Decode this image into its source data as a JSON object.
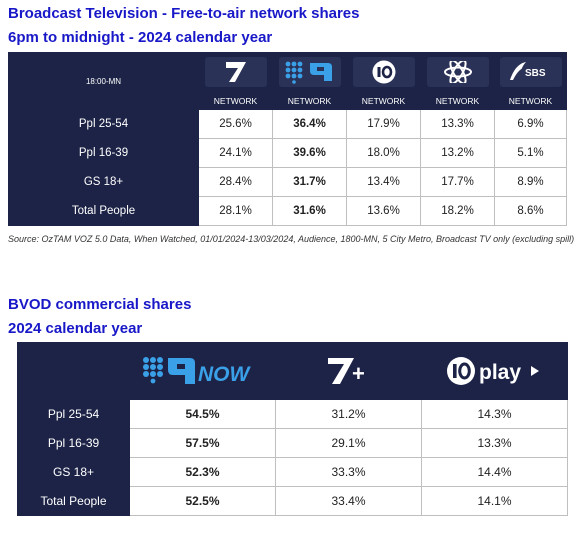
{
  "headings": {
    "tv_title": "Broadcast Television - Free-to-air network shares",
    "tv_subtitle": "6pm to midnight - 2024 calendar year",
    "bvod_title": "BVOD commercial shares",
    "bvod_subtitle": "2024 calendar year"
  },
  "tv_table": {
    "corner_label": "18:00-MN",
    "networks": [
      {
        "logo": "seven-logo-icon",
        "label": "NETWORK"
      },
      {
        "logo": "nine-logo-icon",
        "label": "NETWORK"
      },
      {
        "logo": "ten-logo-icon",
        "label": "NETWORK"
      },
      {
        "logo": "abc-logo-icon",
        "label": "NETWORK"
      },
      {
        "logo": "sbs-logo-icon",
        "label": "NETWORK",
        "logo_text": "SBS"
      }
    ],
    "rows": [
      {
        "label": "Ppl 25-54",
        "values": [
          "25.6%",
          "36.4%",
          "17.9%",
          "13.3%",
          "6.9%"
        ]
      },
      {
        "label": "Ppl 16-39",
        "values": [
          "24.1%",
          "39.6%",
          "18.0%",
          "13.2%",
          "5.1%"
        ]
      },
      {
        "label": "GS 18+",
        "values": [
          "28.4%",
          "31.7%",
          "13.4%",
          "17.7%",
          "8.9%"
        ]
      },
      {
        "label": "Total People",
        "values": [
          "28.1%",
          "31.6%",
          "13.6%",
          "18.2%",
          "8.6%"
        ]
      }
    ],
    "bold_column": 1
  },
  "source_note": "Source: OzTAM VOZ 5.0 Data, When Watched, 01/01/2024-13/03/2024, Audience, 1800-MN, 5 City Metro, Broadcast TV only (excluding spill)",
  "bvod_table": {
    "services": [
      {
        "logo": "9now-logo-icon",
        "logo_text": "NOW"
      },
      {
        "logo": "7plus-logo-icon",
        "logo_text": "+"
      },
      {
        "logo": "10play-logo-icon",
        "logo_text": "play"
      }
    ],
    "rows": [
      {
        "label": "Ppl 25-54",
        "values": [
          "54.5%",
          "31.2%",
          "14.3%"
        ]
      },
      {
        "label": "Ppl 16-39",
        "values": [
          "57.5%",
          "29.1%",
          "13.3%"
        ]
      },
      {
        "label": "GS 18+",
        "values": [
          "52.3%",
          "33.3%",
          "14.4%"
        ]
      },
      {
        "label": "Total People",
        "values": [
          "52.5%",
          "33.4%",
          "14.1%"
        ]
      }
    ],
    "bold_column": 0
  },
  "colors": {
    "heading": "#1818c8",
    "header_navy": "#1d2346",
    "logo_box": "#2b3257",
    "nine_blue": "#3aa0e8"
  }
}
